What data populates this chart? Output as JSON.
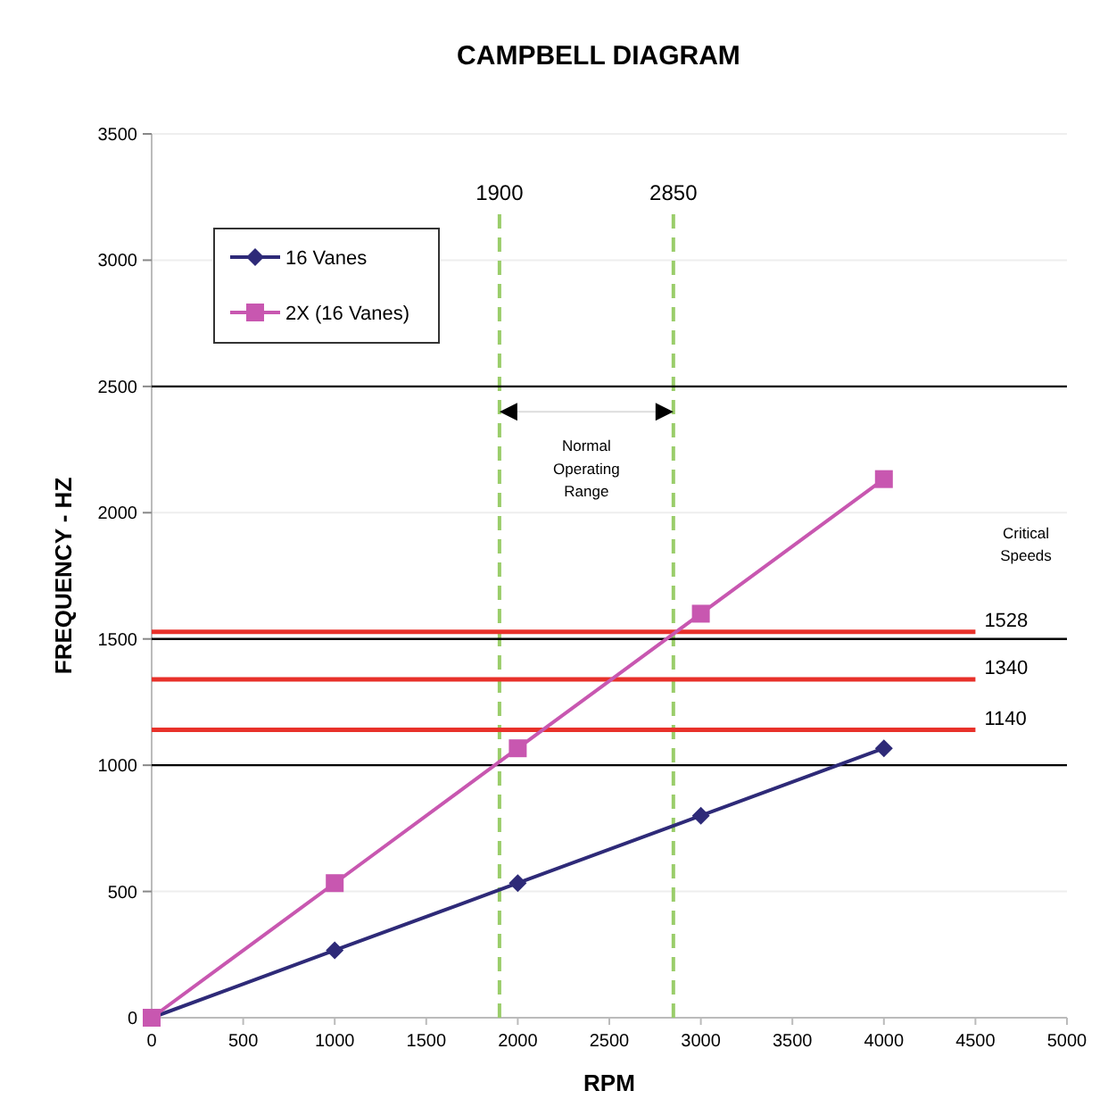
{
  "chart_data": {
    "type": "line",
    "title": "CAMPBELL DIAGRAM",
    "xlabel": "RPM",
    "ylabel": "FREQUENCY - HZ",
    "x": [
      0,
      1000,
      2000,
      3000,
      4000
    ],
    "series": [
      {
        "name": "16 Vanes",
        "color": "#2e2a78",
        "values": [
          0,
          267,
          533,
          800,
          1067
        ],
        "marker": "diamond"
      },
      {
        "name": "2X  (16 Vanes)",
        "color": "#c857b0",
        "values": [
          0,
          533,
          1067,
          1600,
          2133
        ],
        "marker": "square"
      }
    ],
    "xlim": [
      0,
      5000
    ],
    "xticks": [
      0,
      500,
      1000,
      1500,
      2000,
      2500,
      3000,
      3500,
      4000,
      4500,
      5000
    ],
    "ylim": [
      0,
      3500
    ],
    "yticks": [
      0,
      500,
      1000,
      1500,
      2000,
      2500,
      3000,
      3500
    ],
    "grid": "y",
    "legend": "top left",
    "line_style": "solid",
    "ref_lines": [
      {
        "axis": "x",
        "value": 1900,
        "label": "1900",
        "color": "#9acd6a",
        "line_style": "dashed"
      },
      {
        "axis": "x",
        "value": 2850,
        "label": "2850",
        "color": "#9acd6a",
        "line_style": "dashed"
      },
      {
        "axis": "y",
        "value": 1528,
        "label": "1528",
        "color": "#e8312a"
      },
      {
        "axis": "y",
        "value": 1340,
        "label": "1340",
        "color": "#e8312a"
      },
      {
        "axis": "y",
        "value": 1140,
        "label": "1140",
        "color": "#e8312a"
      },
      {
        "axis": "y",
        "value": 1000,
        "color": "#000000"
      },
      {
        "axis": "y",
        "value": 1500,
        "color": "#000000"
      },
      {
        "axis": "y",
        "value": 2500,
        "color": "#000000"
      }
    ],
    "annotations": [
      "Normal Operating Range",
      "Critical Speeds"
    ]
  }
}
